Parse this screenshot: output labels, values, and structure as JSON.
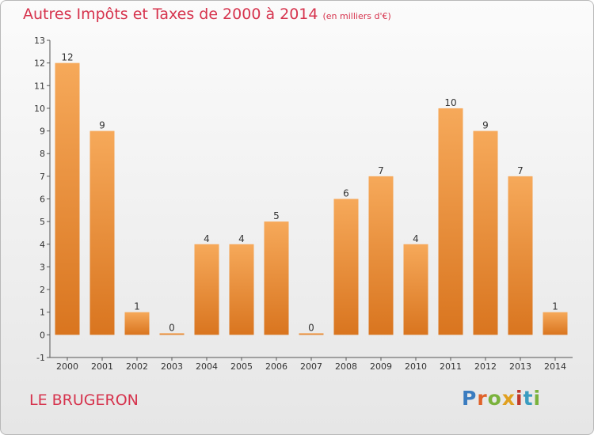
{
  "header": {
    "title": "Autres Impôts et Taxes de 2000 à 2014",
    "unit": "(en milliers d'€)"
  },
  "footer": {
    "commune": "LE BRUGERON",
    "logo_letters": [
      {
        "char": "P",
        "color": "#3a7cc0"
      },
      {
        "char": "r",
        "color": "#e0622a"
      },
      {
        "char": "o",
        "color": "#7ab23c"
      },
      {
        "char": "x",
        "color": "#e0a020"
      },
      {
        "char": "i",
        "color": "#c0392b"
      },
      {
        "char": "t",
        "color": "#3a9cc0"
      },
      {
        "char": "i",
        "color": "#7ab23c"
      }
    ]
  },
  "colors": {
    "bar_top": "#f6a95a",
    "bar_bottom": "#d9751f",
    "title": "#d6334d",
    "text": "#333333",
    "axis": "#555555"
  },
  "chart_data": {
    "type": "bar",
    "title": "Autres Impôts et Taxes de 2000 à 2014",
    "subtitle": "(en milliers d'€)",
    "categories": [
      "2000",
      "2001",
      "2002",
      "2003",
      "2004",
      "2005",
      "2006",
      "2007",
      "2008",
      "2009",
      "2010",
      "2011",
      "2012",
      "2013",
      "2014"
    ],
    "values": [
      12,
      9,
      1,
      0,
      4,
      4,
      5,
      0,
      6,
      7,
      4,
      10,
      9,
      7,
      1
    ],
    "ylim": [
      -1,
      13
    ],
    "yticks": [
      -1,
      0,
      1,
      2,
      3,
      4,
      5,
      6,
      7,
      8,
      9,
      10,
      11,
      12,
      13
    ],
    "grid": false,
    "legend": "none"
  }
}
